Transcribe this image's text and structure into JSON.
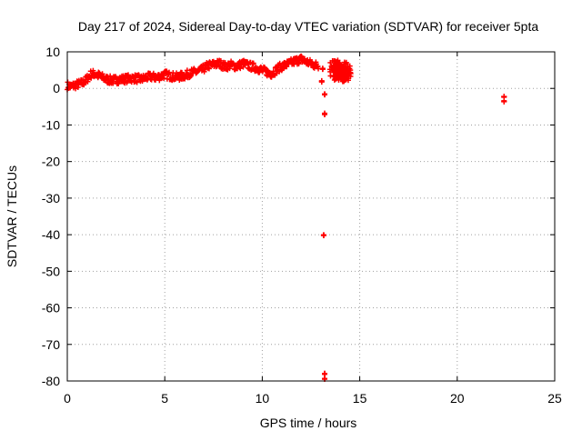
{
  "chart_data": {
    "type": "scatter",
    "title": "Day 217 of 2024, Sidereal Day-to-day VTEC variation (SDTVAR) for receiver 5pta",
    "xlabel": "GPS time / hours",
    "ylabel": "SDTVAR / TECUs",
    "xlim": [
      0,
      25
    ],
    "ylim": [
      -80,
      10
    ],
    "xticks": [
      0,
      5,
      10,
      15,
      20,
      25
    ],
    "yticks": [
      10,
      0,
      -10,
      -20,
      -30,
      -40,
      -50,
      -60,
      -70,
      -80
    ],
    "grid": true,
    "marker": "plus",
    "series_color": "#ff0000",
    "series": [
      {
        "name": "SDTVAR",
        "x": [
          0.0,
          0.2,
          0.4,
          0.6,
          0.8,
          1.0,
          1.2,
          1.4,
          1.6,
          1.8,
          2.0,
          2.3,
          2.6,
          3.0,
          3.4,
          3.8,
          4.0,
          4.3,
          4.6,
          5.0,
          5.3,
          5.6,
          6.0,
          6.3,
          6.6,
          6.9,
          7.2,
          7.5,
          7.8,
          8.1,
          8.4,
          8.7,
          9.0,
          9.3,
          9.6,
          9.9,
          10.2,
          10.5,
          10.8,
          11.1,
          11.4,
          11.7,
          12.0,
          12.3,
          12.6,
          12.9,
          13.1,
          13.05,
          13.2,
          13.2,
          13.15,
          13.2,
          13.2,
          13.7,
          13.9,
          14.1,
          14.3,
          22.4,
          22.4
        ],
        "y": [
          0.8,
          0.5,
          0.9,
          1.2,
          1.5,
          2.5,
          3.8,
          4.0,
          3.5,
          3.0,
          2.5,
          2.2,
          2.4,
          2.6,
          2.8,
          2.5,
          2.9,
          3.2,
          3.0,
          3.8,
          3.4,
          3.1,
          3.5,
          4.2,
          4.5,
          5.0,
          6.2,
          6.5,
          6.8,
          6.0,
          6.4,
          6.0,
          6.8,
          6.2,
          5.8,
          5.2,
          4.5,
          4.0,
          5.5,
          6.2,
          6.8,
          7.5,
          8.0,
          7.2,
          6.5,
          6.2,
          5.5,
          2.0,
          -1.5,
          -7.0,
          -40.0,
          -78.0,
          -79.5,
          5.5,
          4.5,
          5.0,
          4.0,
          -2.2,
          -3.4
        ]
      }
    ]
  }
}
